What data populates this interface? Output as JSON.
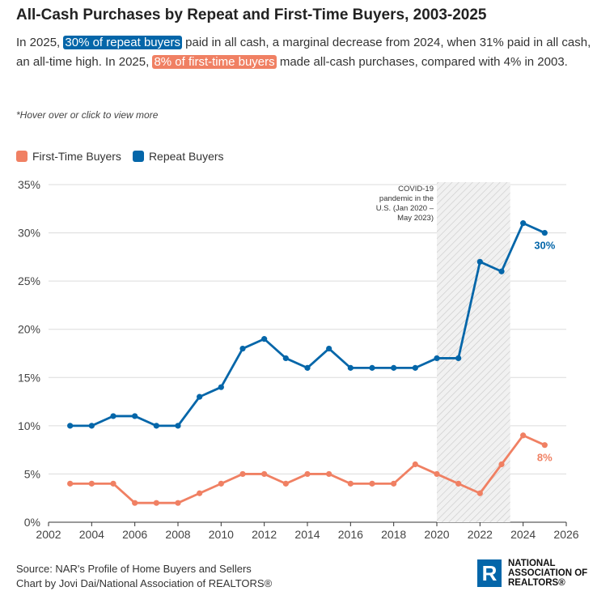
{
  "title": "All-Cash Purchases by Repeat and First-Time Buyers, 2003-2025",
  "subtitle": {
    "p1": "In 2025, ",
    "h1": "30% of repeat buyers",
    "p2": " paid in all cash, a marginal decrease from 2024, when 31% paid in all cash, an all-time high. In 2025, ",
    "h2": "8% of first-time buyers",
    "p3": " made all-cash purchases, compared with 4% in 2003."
  },
  "note": "*Hover over or click to view more",
  "footer": {
    "source": "Source: NAR's Profile of Home Buyers and Sellers",
    "credit": "Chart by Jovi Dai/National Association of REALTORS®"
  },
  "logo": {
    "mark": "R",
    "line1": "NATIONAL",
    "line2": "ASSOCIATION OF",
    "line3": "REALTORS®"
  },
  "colors": {
    "repeat": "#0466a9",
    "first_time": "#f08063"
  },
  "chart_data": {
    "type": "line",
    "title": "All-Cash Purchases by Repeat and First-Time Buyers, 2003-2025",
    "x": [
      2003,
      2004,
      2005,
      2006,
      2007,
      2008,
      2009,
      2010,
      2011,
      2012,
      2013,
      2014,
      2015,
      2016,
      2017,
      2018,
      2019,
      2020,
      2021,
      2022,
      2023,
      2024,
      2025
    ],
    "series": [
      {
        "name": "First-Time Buyers",
        "color": "#f08063",
        "values": [
          4,
          4,
          4,
          2,
          2,
          2,
          3,
          4,
          5,
          5,
          4,
          5,
          5,
          4,
          4,
          4,
          6,
          5,
          4,
          3,
          6,
          9,
          8
        ],
        "end_label": "8%"
      },
      {
        "name": "Repeat Buyers",
        "color": "#0466a9",
        "values": [
          10,
          10,
          11,
          11,
          10,
          10,
          13,
          14,
          18,
          19,
          17,
          16,
          18,
          16,
          16,
          16,
          16,
          17,
          17,
          27,
          26,
          31,
          30
        ],
        "end_label": "30%"
      }
    ],
    "xlim": [
      2002,
      2026
    ],
    "ylim": [
      0,
      35
    ],
    "xticks": [
      2002,
      2004,
      2006,
      2008,
      2010,
      2012,
      2014,
      2016,
      2018,
      2020,
      2022,
      2024,
      2026
    ],
    "yticks": [
      0,
      5,
      10,
      15,
      20,
      25,
      30,
      35
    ],
    "ytick_suffix": "%",
    "grid": true,
    "legend": "top-left",
    "shaded_region": {
      "x_start": 2020.0,
      "x_end": 2023.4,
      "label_lines": [
        "COVID-19",
        "pandemic in the",
        "U.S. (Jan 2020 –",
        "May 2023)"
      ]
    }
  }
}
